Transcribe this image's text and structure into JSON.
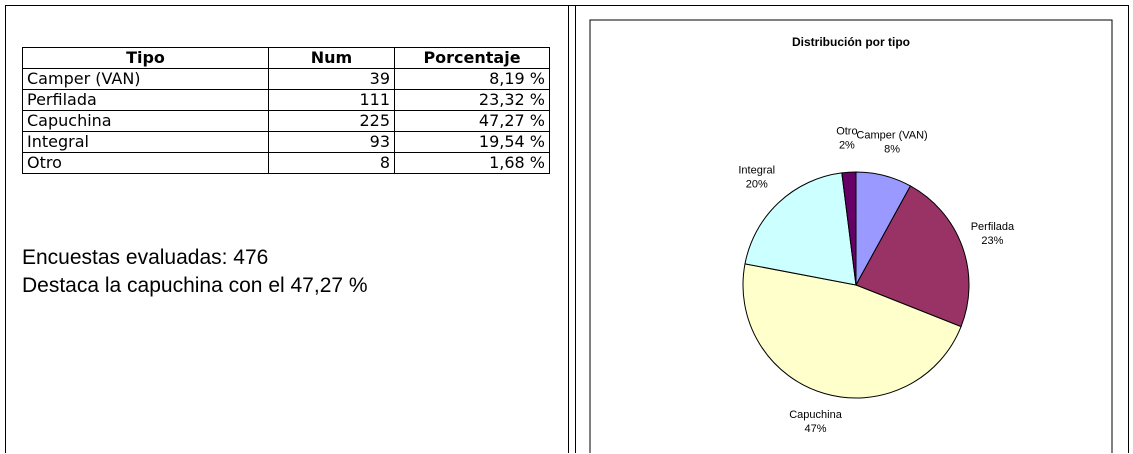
{
  "table": {
    "header": [
      "Tipo",
      "Num",
      "Porcentaje"
    ],
    "rows": [
      [
        "Camper (VAN)",
        39,
        "8,19 %"
      ],
      [
        "Perfilada",
        111,
        "23,32 %"
      ],
      [
        "Capuchina",
        225,
        "47,27 %"
      ],
      [
        "Integral",
        93,
        "19,54 %"
      ],
      [
        "Otro",
        8,
        "1,68 %"
      ]
    ]
  },
  "notes": [
    "Encuestas evaluadas: 476",
    "Destaca la capuchina con el 47,27 %"
  ],
  "chart_data": {
    "type": "pie",
    "title": "Distribución por tipo",
    "categories": [
      "Camper (VAN)",
      "Perfilada",
      "Capuchina",
      "Integral",
      "Otro"
    ],
    "values": [
      8,
      23,
      47,
      20,
      2
    ],
    "value_labels": [
      "8%",
      "23%",
      "47%",
      "20%",
      "2%"
    ],
    "colors": [
      "#9999ff",
      "#993366",
      "#ffffcc",
      "#ccffff",
      "#660066"
    ]
  }
}
